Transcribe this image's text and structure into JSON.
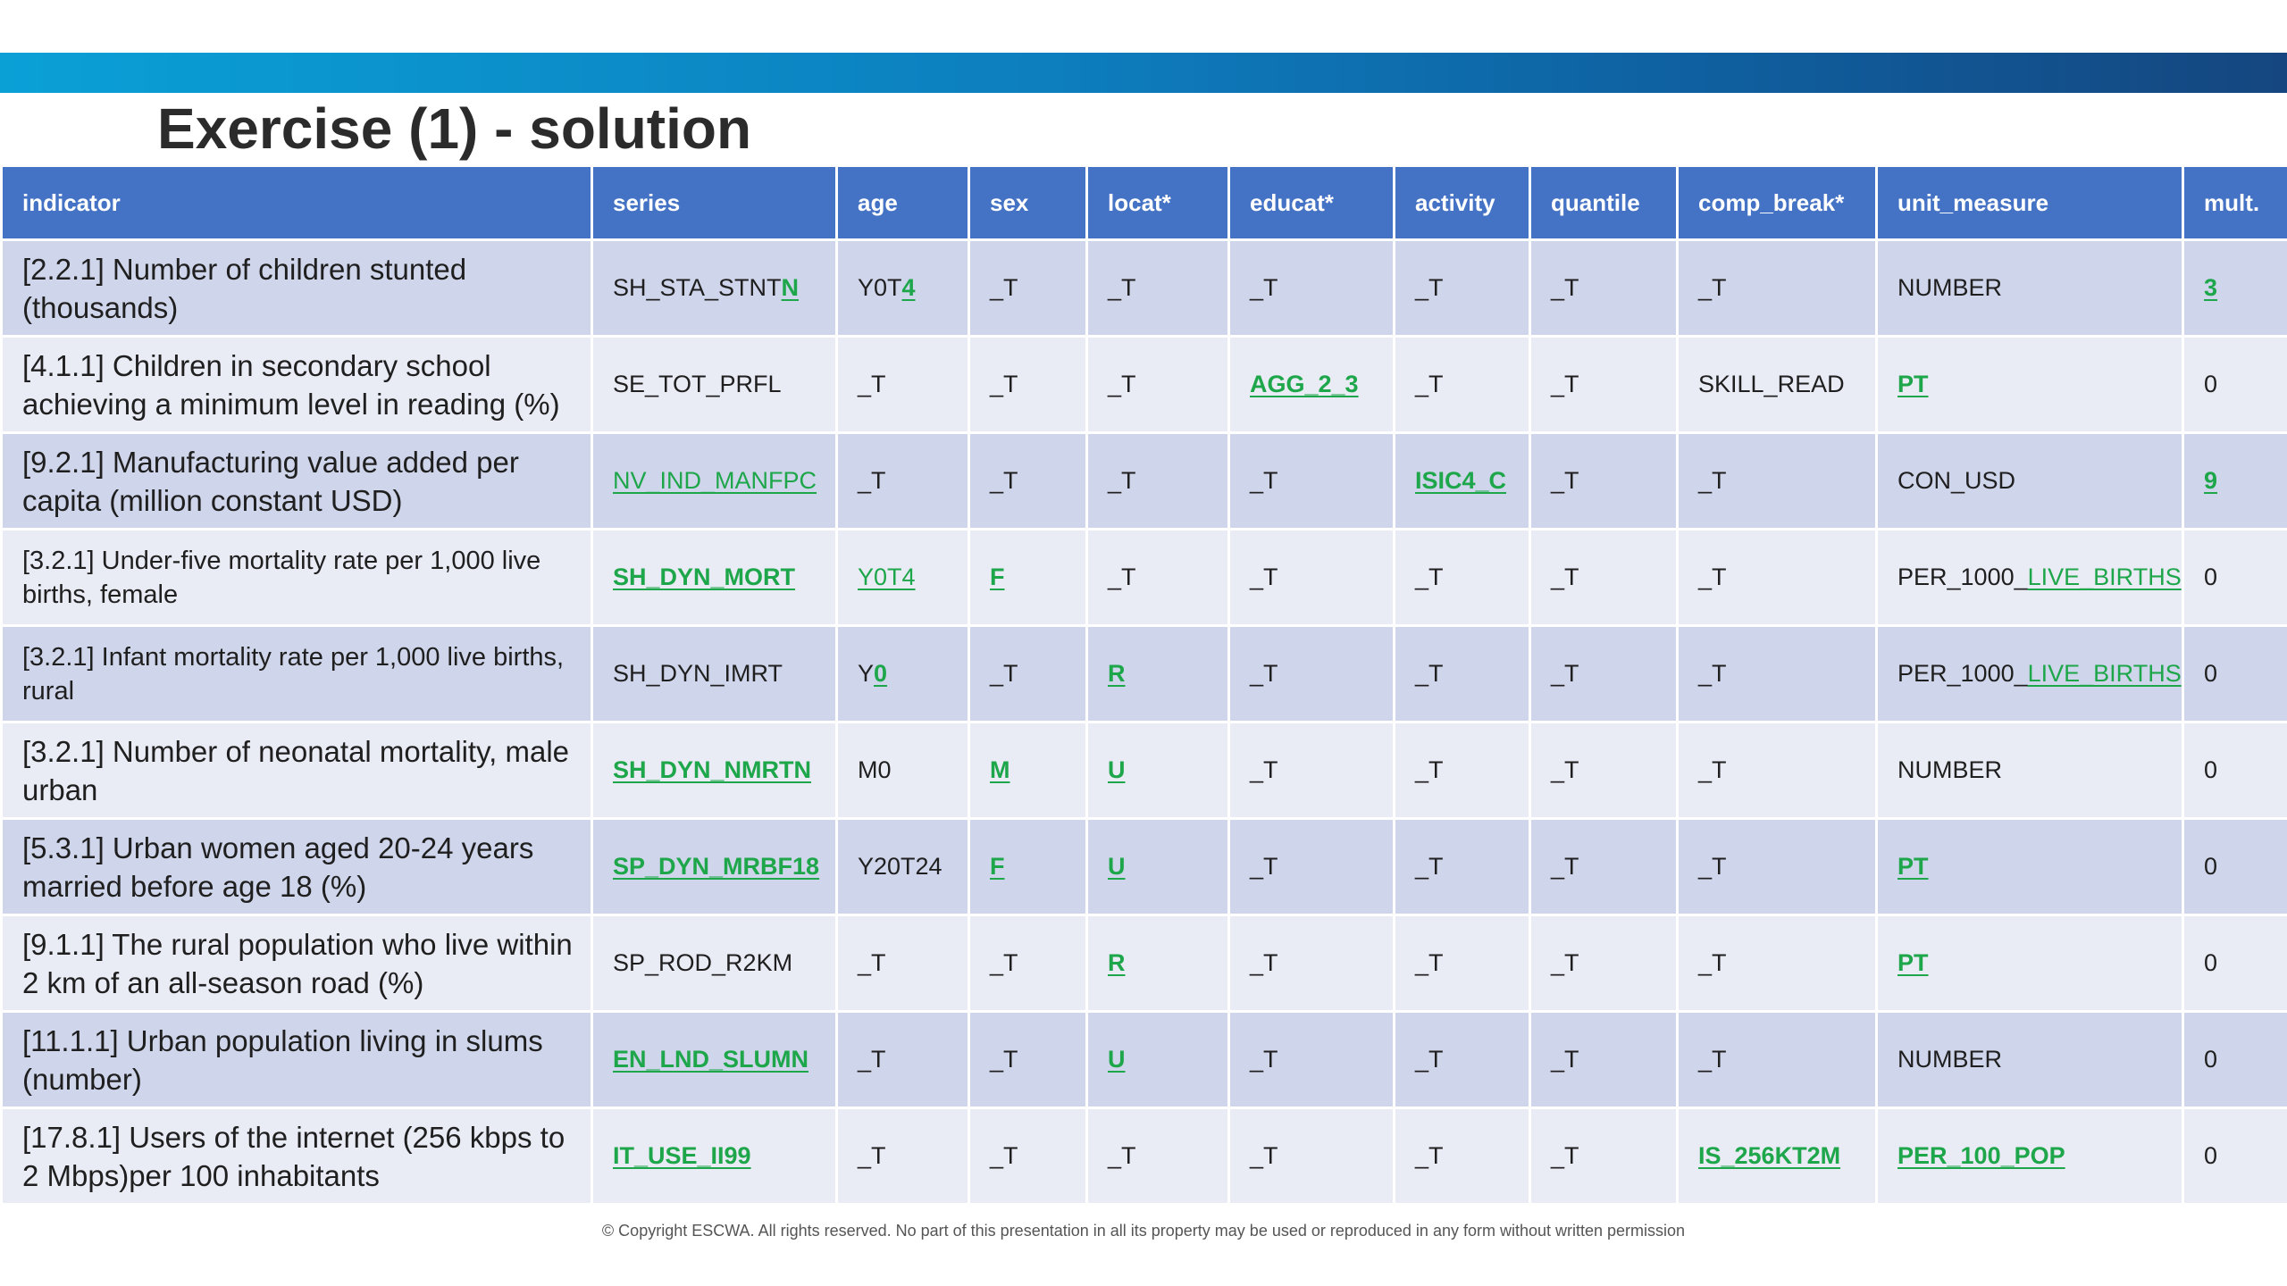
{
  "title": "Exercise (1) - solution",
  "columns": [
    "indicator",
    "series",
    "age",
    "sex",
    "locat*",
    "educat*",
    "activity",
    "quantile",
    "comp_break*",
    "unit_measure",
    "mult."
  ],
  "rows": [
    {
      "indicator": "[2.2.1] Number of children stunted (thousands)",
      "series": "SH_STA_STNT",
      "series_hl": "N",
      "age": "Y0T",
      "age_hl": "4",
      "sex": "_T",
      "locat": "_T",
      "educat": "_T",
      "activity": "_T",
      "quantile": "_T",
      "comp_break": "_T",
      "unit_measure": "NUMBER",
      "mult": "3"
    },
    {
      "indicator": "[4.1.1] Children in secondary school achieving a minimum level in reading (%)",
      "series": "SE_TOT_PRFL",
      "age": "_T",
      "sex": "_T",
      "locat": "_T",
      "educat": "AGG_2_3",
      "activity": "_T",
      "quantile": "_T",
      "comp_break": "SKILL_READ",
      "unit_measure": "PT",
      "mult": "0"
    },
    {
      "indicator": "[9.2.1] Manufacturing value added per capita (million constant USD)",
      "series": "NV_IND_MANFPC",
      "age": "_T",
      "sex": "_T",
      "locat": "_T",
      "educat": "_T",
      "activity": "ISIC4_C",
      "quantile": "_T",
      "comp_break": "_T",
      "unit_measure": "CON_USD",
      "mult": "9"
    },
    {
      "indicator": "[3.2.1] Under-five mortality rate per 1,000 live births, female",
      "series": "SH_DYN_MORT",
      "age": "Y0T4",
      "sex": "F",
      "locat": "_T",
      "educat": "_T",
      "activity": "_T",
      "quantile": "_T",
      "comp_break": "_T",
      "unit_measure": "PER_1000_",
      "unit_measure_hl": "LIVE_BIRTHS",
      "mult": "0"
    },
    {
      "indicator": "[3.2.1] Infant mortality rate per 1,000 live births, rural",
      "series": "SH_DYN_IMRT",
      "age": "Y",
      "age_hl": "0",
      "sex": "_T",
      "locat": "R",
      "educat": "_T",
      "activity": "_T",
      "quantile": "_T",
      "comp_break": "_T",
      "unit_measure": "PER_1000_",
      "unit_measure_hl": "LIVE_BIRTHS",
      "mult": "0"
    },
    {
      "indicator": "[3.2.1] Number of neonatal mortality, male urban",
      "series": "SH_DYN_NMRTN",
      "age": "M0",
      "sex": "M",
      "locat": "U",
      "educat": "_T",
      "activity": "_T",
      "quantile": "_T",
      "comp_break": "_T",
      "unit_measure": "NUMBER",
      "mult": "0"
    },
    {
      "indicator": "[5.3.1] Urban women aged 20-24 years married before age 18 (%)",
      "series": "SP_DYN_MRBF18",
      "age": "Y20T24",
      "sex": "F",
      "locat": "U",
      "educat": "_T",
      "activity": "_T",
      "quantile": "_T",
      "comp_break": "_T",
      "unit_measure": "PT",
      "mult": "0"
    },
    {
      "indicator": "[9.1.1] The rural population who live within 2 km of an all-season road (%)",
      "series": "SP_ROD_R2KM",
      "age": "_T",
      "sex": "_T",
      "locat": "R",
      "educat": "_T",
      "activity": "_T",
      "quantile": "_T",
      "comp_break": "_T",
      "unit_measure": "PT",
      "mult": "0"
    },
    {
      "indicator": "[11.1.1] Urban population living in slums (number)",
      "series": "EN_LND_SLUMN",
      "age": "_T",
      "sex": "_T",
      "locat": "U",
      "educat": "_T",
      "activity": "_T",
      "quantile": "_T",
      "comp_break": "_T",
      "unit_measure": "NUMBER",
      "mult": "0"
    },
    {
      "indicator": "[17.8.1] Users of the internet (256 kbps to 2 Mbps)per 100 inhabitants",
      "series": "IT_USE_II99",
      "age": "_T",
      "sex": "_T",
      "locat": "_T",
      "educat": "_T",
      "activity": "_T",
      "quantile": "_T",
      "comp_break": "IS_256KT2M",
      "unit_measure": "PER_100_POP",
      "mult": "0"
    }
  ],
  "footer": "© Copyright ESCWA. All rights reserved. No part of this presentation in all its property may be used or reproduced in any form without written permission"
}
